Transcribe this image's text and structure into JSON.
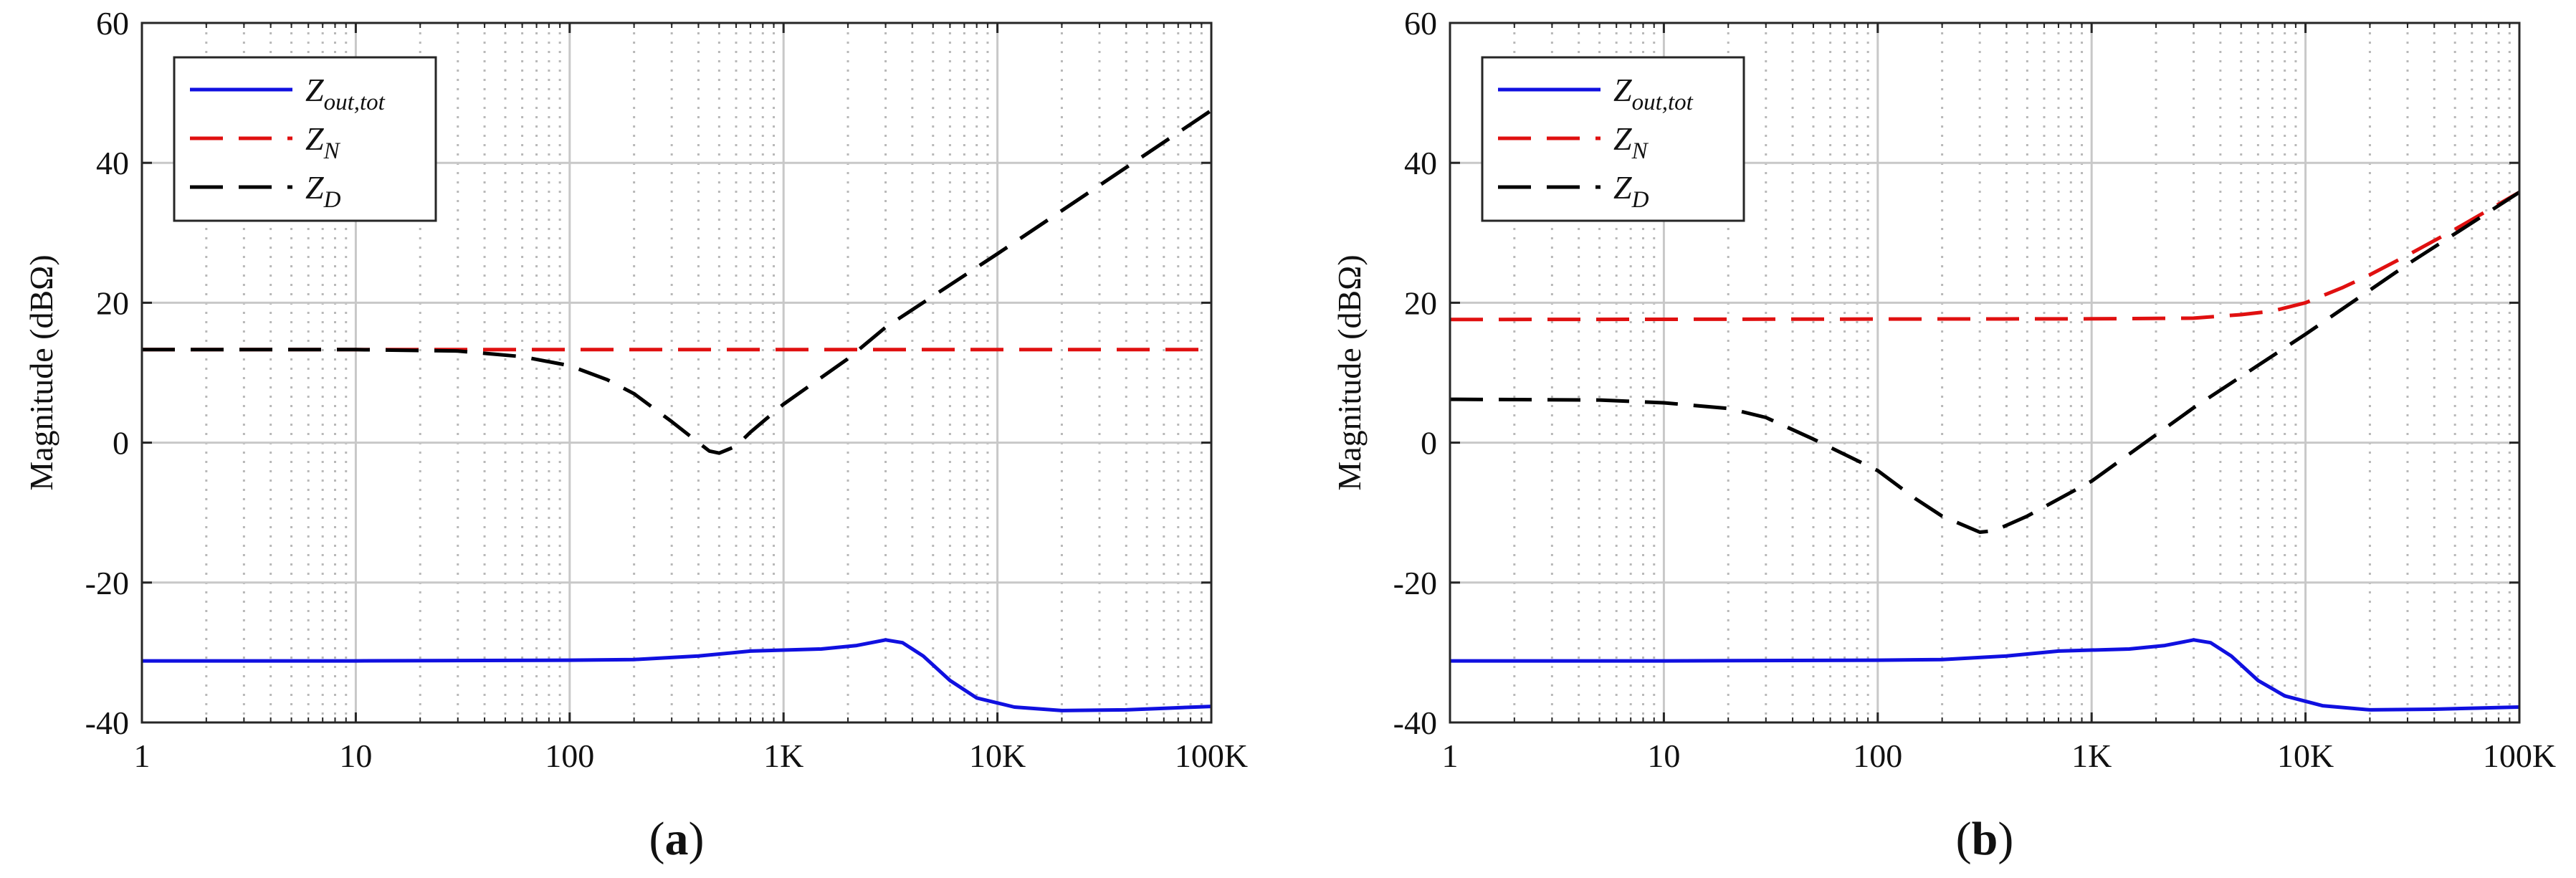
{
  "colors": {
    "zout": "#1010e0",
    "zn": "#e01010",
    "zd": "#000000",
    "grid": "#c8c8c8",
    "axis": "#262626"
  },
  "chart_data": [
    {
      "type": "line",
      "panel_label": "(a)",
      "panel_letter": "a",
      "ylabel": "Magnitude (dBΩ)",
      "xscale": "log",
      "xlim": [
        1,
        100000
      ],
      "ylim": [
        -40,
        60
      ],
      "xticks": [
        1,
        10,
        100,
        1000,
        10000,
        100000
      ],
      "xtick_labels": [
        "1",
        "10",
        "100",
        "1K",
        "10K",
        "100K"
      ],
      "yticks": [
        -40,
        -20,
        0,
        20,
        40,
        60
      ],
      "ytick_labels": [
        "-40",
        "-20",
        "0",
        "20",
        "40",
        "60"
      ],
      "legend": {
        "location": "top-left",
        "entries": [
          "Z_out,tot",
          "Z_N",
          "Z_D"
        ]
      },
      "series": [
        {
          "name": "Z_out,tot",
          "style": "solid",
          "points": [
            [
              1,
              -31.2
            ],
            [
              10,
              -31.2
            ],
            [
              100,
              -31.1
            ],
            [
              200,
              -31
            ],
            [
              400,
              -30.5
            ],
            [
              700,
              -29.8
            ],
            [
              1500,
              -29.5
            ],
            [
              2200,
              -29
            ],
            [
              3000,
              -28.2
            ],
            [
              3600,
              -28.6
            ],
            [
              4500,
              -30.5
            ],
            [
              6000,
              -34
            ],
            [
              8000,
              -36.5
            ],
            [
              12000,
              -37.8
            ],
            [
              20000,
              -38.3
            ],
            [
              40000,
              -38.2
            ],
            [
              100000,
              -37.7
            ]
          ]
        },
        {
          "name": "Z_N",
          "style": "dashed",
          "points": [
            [
              1,
              13.3
            ],
            [
              100000,
              13.3
            ]
          ]
        },
        {
          "name": "Z_D",
          "style": "dashed",
          "points": [
            [
              1,
              13.3
            ],
            [
              10,
              13.3
            ],
            [
              30,
              13.1
            ],
            [
              60,
              12.3
            ],
            [
              100,
              11
            ],
            [
              150,
              9
            ],
            [
              200,
              7
            ],
            [
              300,
              3
            ],
            [
              400,
              0
            ],
            [
              450,
              -1.2
            ],
            [
              500,
              -1.5
            ],
            [
              600,
              -0.5
            ],
            [
              700,
              1.5
            ],
            [
              1000,
              5.5
            ],
            [
              2000,
              12
            ],
            [
              3000,
              16.5
            ],
            [
              10000,
              27
            ],
            [
              100000,
              47.5
            ]
          ]
        }
      ]
    },
    {
      "type": "line",
      "panel_label": "(b)",
      "panel_letter": "b",
      "ylabel": "Magnitude (dBΩ)",
      "xscale": "log",
      "xlim": [
        1,
        100000
      ],
      "ylim": [
        -40,
        60
      ],
      "xticks": [
        1,
        10,
        100,
        1000,
        10000,
        100000
      ],
      "xtick_labels": [
        "1",
        "10",
        "100",
        "1K",
        "10K",
        "100K"
      ],
      "yticks": [
        -40,
        -20,
        0,
        20,
        40,
        60
      ],
      "ytick_labels": [
        "-40",
        "-20",
        "0",
        "20",
        "40",
        "60"
      ],
      "legend": {
        "location": "top-left",
        "entries": [
          "Z_out,tot",
          "Z_N",
          "Z_D"
        ]
      },
      "series": [
        {
          "name": "Z_out,tot",
          "style": "solid",
          "points": [
            [
              1,
              -31.2
            ],
            [
              10,
              -31.2
            ],
            [
              100,
              -31.1
            ],
            [
              200,
              -31
            ],
            [
              400,
              -30.5
            ],
            [
              700,
              -29.8
            ],
            [
              1500,
              -29.5
            ],
            [
              2200,
              -29
            ],
            [
              3000,
              -28.2
            ],
            [
              3600,
              -28.6
            ],
            [
              4500,
              -30.5
            ],
            [
              6000,
              -34
            ],
            [
              8000,
              -36.2
            ],
            [
              12000,
              -37.6
            ],
            [
              20000,
              -38.2
            ],
            [
              40000,
              -38.1
            ],
            [
              100000,
              -37.8
            ]
          ]
        },
        {
          "name": "Z_N",
          "style": "dashed",
          "points": [
            [
              1,
              17.6
            ],
            [
              1000,
              17.7
            ],
            [
              3000,
              17.8
            ],
            [
              5000,
              18.3
            ],
            [
              7000,
              18.8
            ],
            [
              10000,
              20
            ],
            [
              15000,
              22.2
            ],
            [
              20000,
              24
            ],
            [
              30000,
              26.8
            ],
            [
              50000,
              30.5
            ],
            [
              100000,
              35.8
            ]
          ]
        },
        {
          "name": "Z_D",
          "style": "dashed",
          "points": [
            [
              1,
              6.2
            ],
            [
              5,
              6.1
            ],
            [
              10,
              5.7
            ],
            [
              20,
              4.9
            ],
            [
              30,
              3.6
            ],
            [
              50,
              0.5
            ],
            [
              100,
              -4
            ],
            [
              150,
              -8
            ],
            [
              200,
              -10.5
            ],
            [
              300,
              -12.8
            ],
            [
              350,
              -12.6
            ],
            [
              500,
              -10.5
            ],
            [
              1000,
              -5.5
            ],
            [
              3000,
              5
            ],
            [
              10000,
              15.5
            ],
            [
              30000,
              25.5
            ],
            [
              100000,
              35.8
            ]
          ]
        }
      ]
    }
  ]
}
